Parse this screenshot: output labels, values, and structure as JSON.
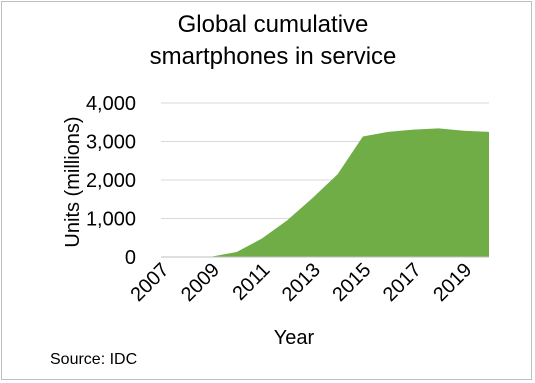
{
  "chart_data": {
    "type": "area",
    "title_lines": [
      "Global cumulative",
      "smartphones in service"
    ],
    "xlabel": "Year",
    "ylabel": "Units (millions)",
    "source": "Source: IDC",
    "x": [
      2007,
      2008,
      2009,
      2010,
      2011,
      2012,
      2013,
      2014,
      2015,
      2016,
      2017,
      2018,
      2019,
      2020
    ],
    "values": [
      0,
      0,
      10,
      130,
      480,
      950,
      1530,
      2150,
      3130,
      3250,
      3310,
      3340,
      3280,
      3250
    ],
    "x_tick_labels": [
      "2007",
      "2009",
      "2011",
      "2013",
      "2015",
      "2017",
      "2019"
    ],
    "y_tick_labels": [
      "0",
      "1,000",
      "2,000",
      "3,000",
      "4,000"
    ],
    "y_ticks": [
      0,
      1000,
      2000,
      3000,
      4000
    ],
    "ylim": [
      0,
      4000
    ],
    "grid": true,
    "legend": "none",
    "fill_color": "#70ad47",
    "grid_color": "#d9d9d9",
    "baseline_color": "#bfbfbf"
  }
}
